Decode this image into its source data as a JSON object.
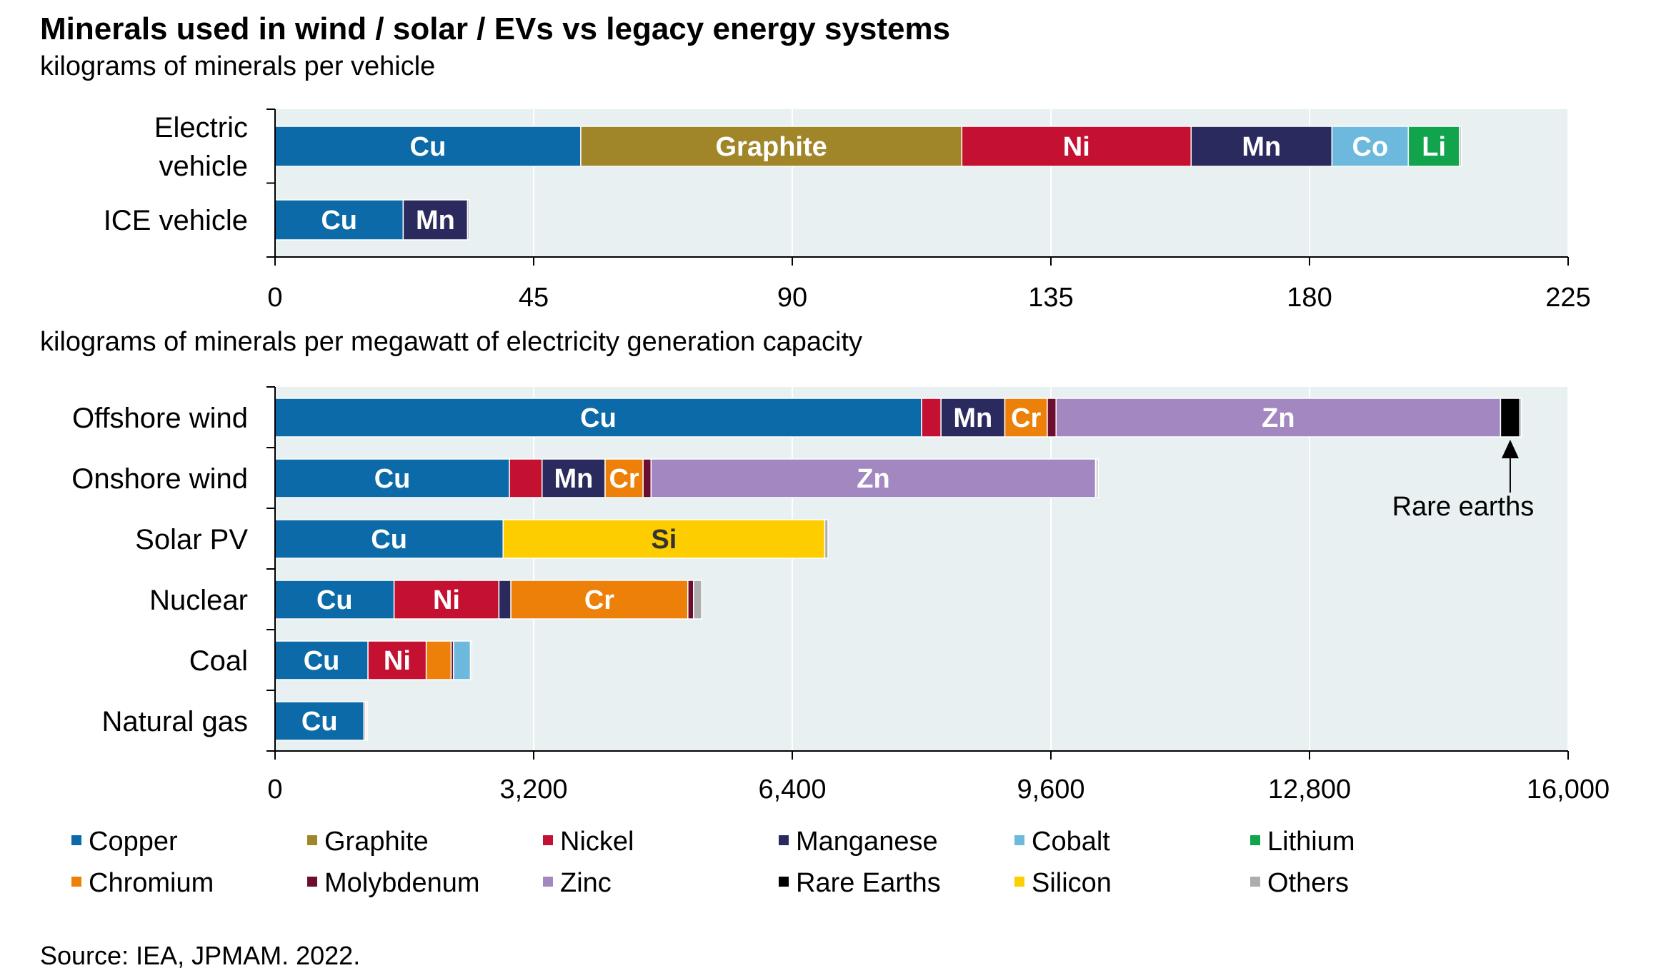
{
  "title": "Minerals used in wind / solar / EVs vs legacy energy systems",
  "source": "Source: IEA, JPMAM. 2022.",
  "colors": {
    "Copper": "#0b6aa7",
    "Graphite": "#a18629",
    "Nickel": "#c41031",
    "Manganese": "#2a2a5e",
    "Cobalt": "#6db9dd",
    "Lithium": "#11a44d",
    "Chromium": "#ec8008",
    "Molybdenum": "#6c0e30",
    "Zinc": "#a287c1",
    "Rare Earths": "#000000",
    "Silicon": "#fdcd00",
    "Others": "#adadad"
  },
  "legend": {
    "items": [
      "Copper",
      "Graphite",
      "Nickel",
      "Manganese",
      "Cobalt",
      "Lithium",
      "Chromium",
      "Molybdenum",
      "Zinc",
      "Rare Earths",
      "Silicon",
      "Others"
    ]
  },
  "chart_data": [
    {
      "type": "bar",
      "orientation": "horizontal",
      "stacked": true,
      "title": "kilograms of minerals per vehicle",
      "categories": [
        "Electric vehicle",
        "ICE vehicle"
      ],
      "xlim": [
        0,
        225
      ],
      "xticks": [
        0,
        45,
        90,
        135,
        180,
        225
      ],
      "xtick_labels": [
        "0",
        "45",
        "90",
        "135",
        "180",
        "225"
      ],
      "series": [
        {
          "name": "Copper",
          "abbr": "Cu",
          "values": [
            53.2,
            22.3
          ]
        },
        {
          "name": "Graphite",
          "abbr": "Graphite",
          "values": [
            66.3,
            0
          ]
        },
        {
          "name": "Nickel",
          "abbr": "Ni",
          "values": [
            39.9,
            0
          ]
        },
        {
          "name": "Manganese",
          "abbr": "Mn",
          "values": [
            24.5,
            11.2
          ]
        },
        {
          "name": "Cobalt",
          "abbr": "Co",
          "values": [
            13.3,
            0
          ]
        },
        {
          "name": "Lithium",
          "abbr": "Li",
          "values": [
            8.9,
            0
          ]
        },
        {
          "name": "Others",
          "abbr": "",
          "values": [
            0.3,
            0.3
          ]
        }
      ]
    },
    {
      "type": "bar",
      "orientation": "horizontal",
      "stacked": true,
      "title": "kilograms of minerals per megawatt of electricity generation capacity",
      "categories": [
        "Offshore wind",
        "Onshore wind",
        "Solar PV",
        "Nuclear",
        "Coal",
        "Natural gas"
      ],
      "xlim": [
        0,
        16000
      ],
      "xticks": [
        0,
        3200,
        6400,
        9600,
        12800,
        16000
      ],
      "xtick_labels": [
        "0",
        "3,200",
        "6,400",
        "9,600",
        "12,800",
        "16,000"
      ],
      "series": [
        {
          "name": "Copper",
          "abbr": "Cu",
          "values": [
            8000,
            2900,
            2822,
            1473,
            1150,
            1100
          ]
        },
        {
          "name": "Nickel",
          "abbr": "Ni",
          "values": [
            240,
            404,
            0,
            1297,
            721,
            16
          ]
        },
        {
          "name": "Manganese",
          "abbr": "Mn",
          "values": [
            790,
            780,
            0,
            148,
            0,
            0
          ]
        },
        {
          "name": "Chromium",
          "abbr": "Cr",
          "values": [
            525,
            470,
            0,
            2190,
            308,
            16
          ]
        },
        {
          "name": "Molybdenum",
          "abbr": "",
          "values": [
            109,
            99,
            0,
            70,
            29,
            0
          ]
        },
        {
          "name": "Cobalt",
          "abbr": "",
          "values": [
            0,
            0,
            0,
            0,
            210,
            0
          ]
        },
        {
          "name": "Silicon",
          "abbr": "Si",
          "values": [
            0,
            0,
            3980,
            0,
            0,
            0
          ]
        },
        {
          "name": "Zinc",
          "abbr": "Zn",
          "values": [
            5500,
            5500,
            0,
            0,
            0,
            0
          ]
        },
        {
          "name": "Rare Earths",
          "abbr": "",
          "values": [
            239,
            14,
            0,
            0,
            0,
            0
          ]
        },
        {
          "name": "Others",
          "abbr": "",
          "values": [
            20,
            20,
            40,
            100,
            16,
            8
          ]
        }
      ],
      "annotations": [
        {
          "text": "Rare earths",
          "target": "Offshore wind / Rare Earths"
        }
      ]
    }
  ]
}
